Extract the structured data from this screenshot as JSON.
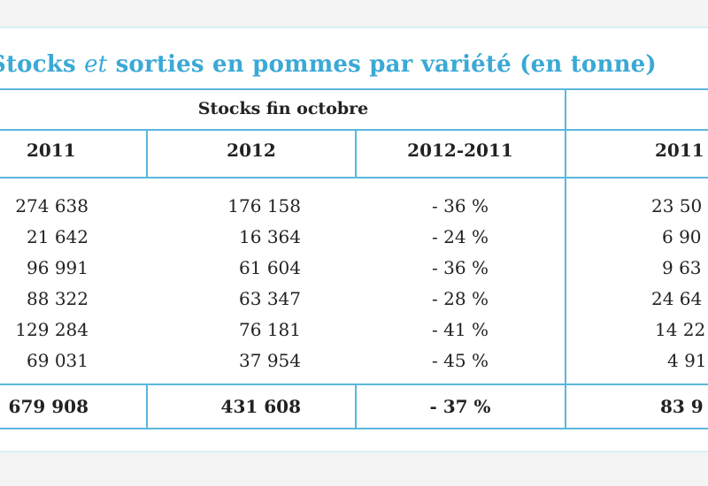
{
  "title": {
    "part1": "Stocks",
    "part2": "et",
    "part3": "sorties en pommes par variété (en tonne)"
  },
  "table": {
    "group_header": "Stocks fin octobre",
    "columns": [
      "2011",
      "2012",
      "2012-2011",
      "2011"
    ],
    "rows": [
      {
        "c2011": "274 638",
        "c2012": "176 158",
        "diff": "- 36 %",
        "next": "23 50"
      },
      {
        "c2011": "21 642",
        "c2012": "16 364",
        "diff": "- 24 %",
        "next": "6 90"
      },
      {
        "c2011": "96 991",
        "c2012": "61 604",
        "diff": "- 36 %",
        "next": "9 63"
      },
      {
        "c2011": "88 322",
        "c2012": "63 347",
        "diff": "- 28 %",
        "next": "24 64"
      },
      {
        "c2011": "129 284",
        "c2012": "76 181",
        "diff": "- 41 %",
        "next": "14 22"
      },
      {
        "c2011": "69 031",
        "c2012": "37 954",
        "diff": "- 45 %",
        "next": "4 91"
      }
    ],
    "total": {
      "c2011": "679 908",
      "c2012": "431 608",
      "diff": "- 37 %",
      "next": "83 9"
    }
  },
  "colors": {
    "title": "#3aa9d6",
    "rules": "#5ab7dd"
  }
}
